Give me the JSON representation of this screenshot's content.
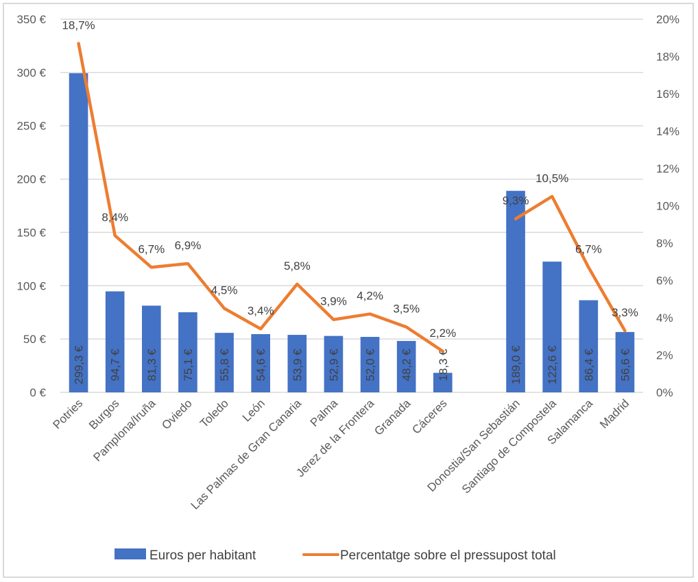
{
  "chart_data": {
    "type": "bar",
    "title": "",
    "categories": [
      "Potries",
      "Burgos",
      "Pamplona/Iruña",
      "Oviedo",
      "Toledo",
      "León",
      "Las Palmas de Gran Canaria",
      "Palma",
      "Jerez de la Frontera",
      "Granada",
      "Cáceres",
      "",
      "Donostia/San Sebastián",
      "Santiago de Compostela",
      "Salamanca",
      "Madrid"
    ],
    "series": [
      {
        "name": "Euros per habitant",
        "type": "bar",
        "axis": "left",
        "color": "#4472C4",
        "values": [
          299.3,
          94.7,
          81.3,
          75.1,
          55.8,
          54.6,
          53.9,
          52.9,
          52.0,
          48.2,
          18.3,
          null,
          189.0,
          122.6,
          86.4,
          56.6
        ],
        "labels": [
          "299,3 €",
          "94,7 €",
          "81,3 €",
          "75,1 €",
          "55,8 €",
          "54,6 €",
          "53,9 €",
          "52,9 €",
          "52,0 €",
          "48,2 €",
          "18,3 €",
          "",
          "189,0 €",
          "122,6 €",
          "86,4 €",
          "56,6 €"
        ]
      },
      {
        "name": "Percentatge sobre el pressupost total",
        "type": "line",
        "axis": "right",
        "color": "#ED7D31",
        "values": [
          18.7,
          8.4,
          6.7,
          6.9,
          4.5,
          3.4,
          5.8,
          3.9,
          4.2,
          3.5,
          2.2,
          null,
          9.3,
          10.5,
          6.7,
          3.3
        ],
        "labels": [
          "18,7%",
          "8,4%",
          "6,7%",
          "6,9%",
          "4,5%",
          "3,4%",
          "5,8%",
          "3,9%",
          "4,2%",
          "3,5%",
          "2,2%",
          "",
          "9,3%",
          "10,5%",
          "6,7%",
          "3,3%"
        ]
      }
    ],
    "y_left": {
      "range": [
        0,
        350
      ],
      "ticks": [
        0,
        50,
        100,
        150,
        200,
        250,
        300,
        350
      ],
      "tick_labels": [
        "0 €",
        "50 €",
        "100 €",
        "150 €",
        "200 €",
        "250 €",
        "300 €",
        "350 €"
      ]
    },
    "y_right": {
      "range": [
        0,
        20
      ],
      "ticks": [
        0,
        2,
        4,
        6,
        8,
        10,
        12,
        14,
        16,
        18,
        20
      ],
      "tick_labels": [
        "0%",
        "2%",
        "4%",
        "6%",
        "8%",
        "10%",
        "12%",
        "14%",
        "16%",
        "18%",
        "20%"
      ]
    },
    "xlabel": "",
    "ylabel": "",
    "grid": true,
    "legend": {
      "position": "bottom",
      "entries": [
        "Euros per habitant",
        "Percentatge sobre el pressupost total"
      ]
    }
  }
}
